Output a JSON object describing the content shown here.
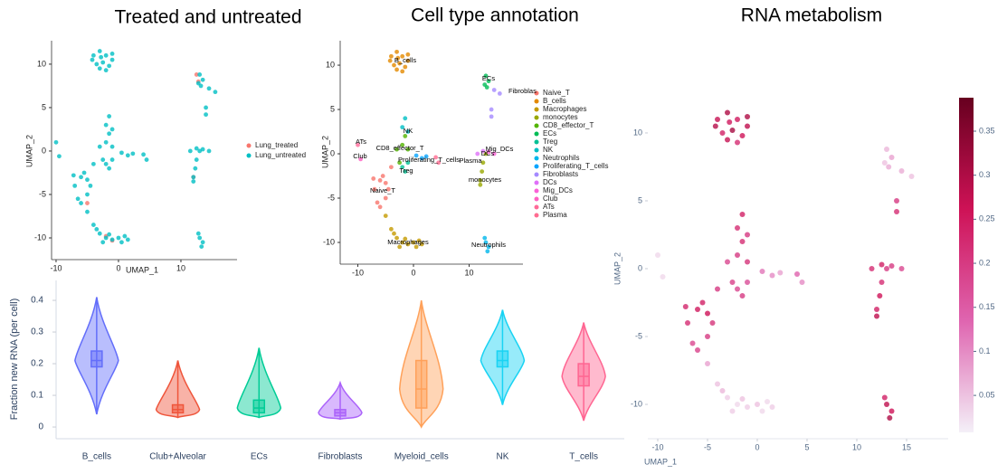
{
  "chart_data": [
    {
      "type": "scatter",
      "title": "Treated and untreated",
      "xlabel": "UMAP_1",
      "ylabel": "UMAP_2",
      "xlim": [
        -10.72,
        18.99
      ],
      "ylim": [
        -12.5,
        12.7
      ],
      "xticks": [
        -10,
        0,
        10
      ],
      "yticks": [
        10,
        5,
        0,
        -5,
        -10
      ],
      "series": [
        {
          "name": "Lung_treated",
          "color": "#F8766D",
          "x": [
            12.5,
            12.8,
            -2,
            -5,
            12,
            -1
          ],
          "y": [
            8.8,
            8,
            -9.8,
            -6,
            -3,
            -10.3
          ]
        },
        {
          "name": "Lung_untreated",
          "color": "#00BFC4",
          "x": [
            -7,
            -6,
            -5,
            -6.5,
            -5.5,
            -4.5,
            -6,
            -7.2,
            -5,
            -4,
            -4,
            -3,
            -2,
            -1,
            -3.5,
            -2.5,
            -1.5,
            -4.2,
            -2,
            -3,
            -1,
            -2.8,
            -5,
            -4,
            -3,
            -2,
            -1,
            0,
            1,
            -3.5,
            -2.5,
            0.5,
            -1.5,
            1.5,
            12,
            12.3,
            12.5,
            12,
            13,
            -2,
            -3,
            -1.5,
            -2.5,
            -1,
            13,
            13.5,
            12.8,
            13.2,
            -2,
            -1.5,
            -1,
            -2,
            -1.5,
            -1,
            13,
            13.3,
            13.5,
            12.8,
            0.5,
            1.5,
            2.3,
            14.5,
            15.5,
            14,
            14,
            11.5,
            12.5,
            13.5,
            14.5,
            -9.5,
            -10,
            4,
            4.5
          ],
          "y": [
            -4,
            -3,
            -5,
            -5.5,
            -2.5,
            -4,
            -6,
            -2.8,
            -3.3,
            -1.5,
            11,
            11.5,
            11,
            10.5,
            10,
            10.2,
            9.8,
            10.5,
            9.3,
            9.5,
            11.2,
            10.8,
            -7,
            -8.5,
            -9.5,
            -10,
            -10.2,
            -10,
            -9.8,
            -9,
            -10.5,
            -10.5,
            -9.6,
            -10.2,
            -3,
            -2,
            -1,
            -3.5,
            0,
            1,
            0.5,
            2,
            -1,
            0.5,
            8.8,
            8.2,
            7.8,
            7.5,
            -1.5,
            -2,
            -1,
            3,
            4,
            2.5,
            -10,
            -11,
            -10.5,
            -9.5,
            -0.2,
            -0.5,
            -0.3,
            7.2,
            6.8,
            5,
            4.2,
            0,
            0.3,
            0.2,
            0,
            -0.6,
            1,
            -0.4,
            -1
          ]
        }
      ]
    },
    {
      "type": "scatter",
      "title": "Cell type annotation",
      "ylabel": "UMAP_2",
      "xlim": [
        -13.17,
        19.67
      ],
      "ylim": [
        -12.45,
        12.76
      ],
      "xticks": [
        -10,
        0,
        10
      ],
      "yticks": [
        10,
        5,
        0,
        -5,
        -10
      ],
      "annotations": [
        "B_cells",
        "ECs",
        "Fibroblas",
        "NK",
        "CD8_effector_T",
        "ATs",
        "Club",
        "Proliferating_T_cells",
        "Plasma",
        "Mig_DCs",
        "DCs",
        "Treg",
        "monocytes",
        "Naive_T",
        "Macrophages",
        "Neutrophils"
      ],
      "series": [
        {
          "name": "Naive_T",
          "color": "#F8766D",
          "x": [
            -7,
            -6,
            -5,
            -6.5,
            -5.5,
            -4.5,
            -6,
            -7.2,
            -5,
            -4
          ],
          "y": [
            -4,
            -3,
            -5,
            -5.5,
            -2.5,
            -4,
            -6,
            -2.8,
            -3.3,
            -1.5
          ]
        },
        {
          "name": "B_cells",
          "color": "#E38900",
          "x": [
            -4,
            -3,
            -2,
            -1,
            -3.5,
            -2.5,
            -1.5,
            -4.2,
            -2,
            -3,
            -1,
            -2.8
          ],
          "y": [
            11,
            11.5,
            11,
            10.5,
            10,
            10.2,
            9.8,
            10.5,
            9.3,
            9.5,
            11.2,
            10.8
          ]
        },
        {
          "name": "Macrophages",
          "color": "#C49A00",
          "x": [
            -5,
            -4,
            -3,
            -2,
            -1,
            0,
            1,
            -3.5,
            -2.5,
            0.5,
            -1.5,
            1.5
          ],
          "y": [
            -7,
            -8.5,
            -9.5,
            -10,
            -10.2,
            -10,
            -9.8,
            -9,
            -10.5,
            -10.5,
            -9.6,
            -10.2
          ]
        },
        {
          "name": "monocytes",
          "color": "#99A800",
          "x": [
            12,
            12.3,
            12.5,
            12,
            13
          ],
          "y": [
            -3,
            -2,
            -1,
            -3.5,
            0
          ]
        },
        {
          "name": "CD8_effector_T",
          "color": "#53B400",
          "x": [
            -2,
            -3,
            -1.5,
            -2.5,
            -1
          ],
          "y": [
            1,
            0.5,
            2,
            -1,
            0.5
          ]
        },
        {
          "name": "ECs",
          "color": "#00BC56",
          "x": [
            13,
            13.5,
            12.8,
            13.2
          ],
          "y": [
            8.8,
            8.2,
            7.8,
            7.5
          ]
        },
        {
          "name": "Treg",
          "color": "#00C094",
          "x": [
            -2,
            -1.5,
            -1
          ],
          "y": [
            -1.5,
            -2,
            -1
          ]
        },
        {
          "name": "NK",
          "color": "#00BFC4",
          "x": [
            -2,
            -1.5,
            -1
          ],
          "y": [
            3,
            4,
            2.5
          ]
        },
        {
          "name": "Neutrophils",
          "color": "#00B6EB",
          "x": [
            13,
            13.3,
            13.5,
            12.8
          ],
          "y": [
            -10,
            -11,
            -10.5,
            -9.5
          ]
        },
        {
          "name": "Proliferating_T_cells",
          "color": "#06A4FF",
          "x": [
            0.5,
            1.5,
            2.3
          ],
          "y": [
            -0.2,
            -0.5,
            -0.3
          ]
        },
        {
          "name": "Fibroblasts",
          "color": "#A58AFF",
          "x": [
            14.5,
            15.5,
            14,
            14
          ],
          "y": [
            7.2,
            6.8,
            5,
            4.2
          ]
        },
        {
          "name": "DCs",
          "color": "#DF70F8",
          "x": [
            11.5,
            12.5
          ],
          "y": [
            0,
            0.3
          ]
        },
        {
          "name": "Mig_DCs",
          "color": "#FB61D7",
          "x": [
            13.5,
            14.5
          ],
          "y": [
            0.2,
            0
          ]
        },
        {
          "name": "Club",
          "color": "#FF61C3",
          "x": [
            -9.5
          ],
          "y": [
            -0.6
          ]
        },
        {
          "name": "ATs",
          "color": "#FF6A98",
          "x": [
            -10
          ],
          "y": [
            1
          ]
        },
        {
          "name": "Plasma",
          "color": "#FF6C91",
          "x": [
            4,
            4.5
          ],
          "y": [
            -0.4,
            -1
          ]
        }
      ]
    },
    {
      "type": "violin",
      "ylabel": "Fraction new RNA (per cell)",
      "ylim": [
        -0.037,
        0.463
      ],
      "yticks": [
        0,
        0.1,
        0.2,
        0.3,
        0.4
      ],
      "categories": [
        "B_cells",
        "Club+Alveolar",
        "ECs",
        "Fibroblasts",
        "Myeloid_cells",
        "NK",
        "T_cells"
      ],
      "colors": [
        "#636EFA",
        "#EF553B",
        "#00CC96",
        "#AB63FA",
        "#FFA15A",
        "#19D3F3",
        "#FF6692"
      ],
      "min": [
        0.04,
        0.03,
        0.03,
        0.025,
        0.0,
        0.07,
        0.02
      ],
      "q1": [
        0.19,
        0.045,
        0.045,
        0.035,
        0.06,
        0.19,
        0.13
      ],
      "median": [
        0.21,
        0.055,
        0.06,
        0.045,
        0.12,
        0.21,
        0.16
      ],
      "q3": [
        0.24,
        0.07,
        0.085,
        0.055,
        0.21,
        0.24,
        0.2
      ],
      "max": [
        0.41,
        0.21,
        0.25,
        0.14,
        0.4,
        0.37,
        0.33
      ]
    },
    {
      "type": "scatter",
      "title": "RNA metabolism",
      "xlabel": "UMAP_1",
      "ylabel": "UMAP_2",
      "xlim": [
        -11,
        19.18
      ],
      "ylim": [
        -12.53,
        13.13
      ],
      "xticks": [
        -10,
        -5,
        0,
        5,
        10,
        15
      ],
      "yticks": [
        10,
        5,
        0,
        -5,
        -10
      ],
      "colorscale": [
        "#f4f0f8",
        "#df65b0",
        "#ce1256",
        "#67001f"
      ],
      "clim": [
        0.008,
        0.388
      ],
      "cticks": [
        0.05,
        0.1,
        0.15,
        0.2,
        0.25,
        0.3,
        0.35
      ],
      "series": [
        {
          "x": [
            -7,
            -6,
            -5,
            -6.5,
            -5.5,
            -4.5,
            -6,
            -7.2,
            -5,
            -4,
            -4,
            -3,
            -2,
            -1,
            -3.5,
            -2.5,
            -1.5,
            -4.2,
            -2,
            -3,
            -1,
            -2.8,
            -5,
            -4,
            -3,
            -2,
            -1,
            0,
            1,
            -3.5,
            -2.5,
            0.5,
            -1.5,
            1.5,
            12,
            12.3,
            12.5,
            12,
            13,
            -2,
            -3,
            -1.5,
            -2.5,
            -1,
            13,
            13.5,
            12.8,
            13.2,
            -2,
            -1.5,
            -1,
            -2,
            -1.5,
            -1,
            13,
            13.3,
            13.5,
            12.8,
            0.5,
            1.5,
            2.3,
            14.5,
            15.5,
            14,
            14,
            11.5,
            12.5,
            13.5,
            14.5,
            -9.5,
            -10,
            4,
            4.5
          ],
          "y": [
            -4,
            -3,
            -5,
            -5.5,
            -2.5,
            -4,
            -6,
            -2.8,
            -3.3,
            -1.5,
            11,
            11.5,
            11,
            10.5,
            10,
            10.2,
            9.8,
            10.5,
            9.3,
            9.5,
            11.2,
            10.8,
            -7,
            -8.5,
            -9.5,
            -10,
            -10.2,
            -10,
            -9.8,
            -9,
            -10.5,
            -10.5,
            -9.6,
            -10.2,
            -3,
            -2,
            -1,
            -3.5,
            0,
            1,
            0.5,
            2,
            -1,
            0.5,
            8.8,
            8.2,
            7.8,
            7.5,
            -1.5,
            -2,
            -1,
            3,
            4,
            2.5,
            -10,
            -11,
            -10.5,
            -9.5,
            -0.2,
            -0.5,
            -0.3,
            7.2,
            6.8,
            5,
            4.2,
            0,
            0.3,
            0.2,
            0,
            -0.6,
            1,
            -0.4,
            -1
          ],
          "values": [
            0.22,
            0.25,
            0.2,
            0.18,
            0.24,
            0.21,
            0.19,
            0.23,
            0.26,
            0.2,
            0.27,
            0.3,
            0.25,
            0.28,
            0.24,
            0.31,
            0.26,
            0.29,
            0.22,
            0.27,
            0.3,
            0.25,
            0.08,
            0.05,
            0.04,
            0.03,
            0.04,
            0.05,
            0.03,
            0.06,
            0.04,
            0.03,
            0.05,
            0.04,
            0.24,
            0.26,
            0.22,
            0.28,
            0.2,
            0.2,
            0.18,
            0.22,
            0.19,
            0.21,
            0.06,
            0.08,
            0.05,
            0.07,
            0.18,
            0.2,
            0.17,
            0.22,
            0.24,
            0.2,
            0.28,
            0.3,
            0.26,
            0.24,
            0.12,
            0.1,
            0.08,
            0.07,
            0.05,
            0.2,
            0.22,
            0.22,
            0.24,
            0.2,
            0.18,
            0.03,
            0.03,
            0.14,
            0.1
          ]
        }
      ]
    }
  ]
}
